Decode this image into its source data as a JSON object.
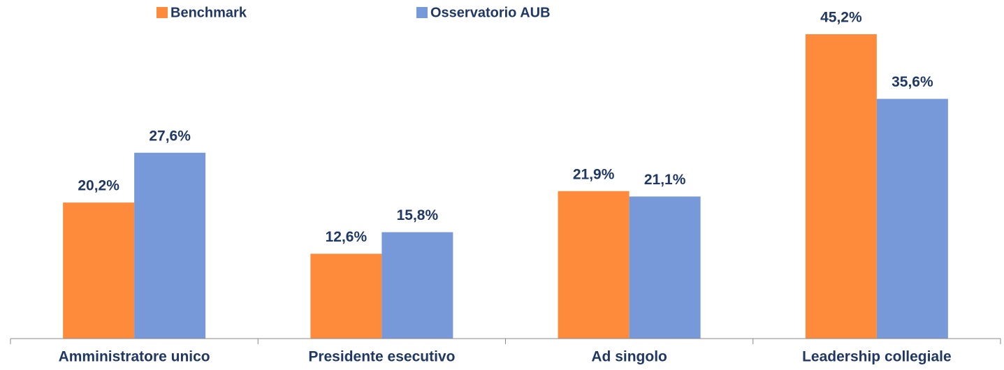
{
  "chart_data": {
    "type": "bar",
    "categories": [
      "Amministratore unico",
      "Presidente esecutivo",
      "Ad singolo",
      "Leadership collegiale"
    ],
    "series": [
      {
        "name": "Benchmark",
        "color": "#fd8b3b",
        "values": [
          20.2,
          12.6,
          21.9,
          45.2
        ],
        "value_labels": [
          "20,2%",
          "12,6%",
          "21,9%",
          "45,2%"
        ]
      },
      {
        "name": "Osservatorio AUB",
        "color": "#7799d9",
        "values": [
          27.6,
          15.8,
          21.1,
          35.6
        ],
        "value_labels": [
          "27,6%",
          "15,8%",
          "21,1%",
          "35,6%"
        ]
      }
    ],
    "legend": "top"
  }
}
